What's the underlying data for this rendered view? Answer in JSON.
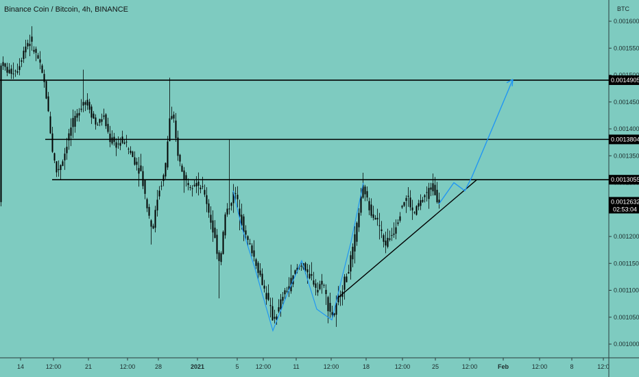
{
  "chart": {
    "title": "Binance Coin / Bitcoin, 4h, BINANCE",
    "currency": "BTC",
    "countdown": "02:53:04"
  },
  "colors": {
    "background": "#7ecbc0",
    "candle": "#000000",
    "level_line": "#000000",
    "projection": "#2196f3",
    "label_bg": "#000000",
    "label_text": "#ffffff"
  },
  "chart_data": {
    "type": "candlestick",
    "y_axis": {
      "ticks": [
        "0.0016000",
        "0.0015500",
        "0.0015000",
        "0.0014500",
        "0.0014000",
        "0.0013500",
        "0.0013000",
        "0.0012500",
        "0.0012000",
        "0.0011500",
        "0.0011000",
        "0.0010500",
        "0.0010000"
      ],
      "range": [
        0.00098,
        0.00162
      ]
    },
    "x_axis": {
      "ticks": [
        "14",
        "12:00",
        "21",
        "12:00",
        "28",
        "2021",
        "5",
        "12:00",
        "11",
        "12:00",
        "18",
        "12:00",
        "25",
        "12:00",
        "Feb",
        "12:00",
        "8",
        "12:0"
      ]
    },
    "levels": [
      {
        "price": 0.0014905,
        "label": "0.0014905"
      },
      {
        "price": 0.0013804,
        "label": "0.0013804"
      },
      {
        "price": 0.0013055,
        "label": "0.0013055"
      }
    ],
    "last_price": {
      "price": 0.0012632,
      "label": "0.0012632"
    },
    "price_path": [
      [
        0,
        0.001525
      ],
      [
        12,
        0.001505
      ],
      [
        25,
        0.00151
      ],
      [
        35,
        0.00155
      ],
      [
        42,
        0.001565
      ],
      [
        55,
        0.00153
      ],
      [
        65,
        0.00148
      ],
      [
        70,
        0.00143
      ],
      [
        76,
        0.00136
      ],
      [
        82,
        0.00132
      ],
      [
        92,
        0.001345
      ],
      [
        102,
        0.0014
      ],
      [
        112,
        0.001425
      ],
      [
        122,
        0.001455
      ],
      [
        130,
        0.00144
      ],
      [
        140,
        0.001405
      ],
      [
        150,
        0.001425
      ],
      [
        160,
        0.00138
      ],
      [
        170,
        0.00137
      ],
      [
        180,
        0.00138
      ],
      [
        192,
        0.00135
      ],
      [
        205,
        0.00132
      ],
      [
        215,
        0.00125
      ],
      [
        222,
        0.00121
      ],
      [
        230,
        0.00128
      ],
      [
        240,
        0.00132
      ],
      [
        247,
        0.00142
      ],
      [
        252,
        0.00142
      ],
      [
        258,
        0.00136
      ],
      [
        265,
        0.00132
      ],
      [
        272,
        0.0013
      ],
      [
        285,
        0.0013
      ],
      [
        298,
        0.00128
      ],
      [
        305,
        0.00124
      ],
      [
        312,
        0.0012
      ],
      [
        320,
        0.00115
      ],
      [
        328,
        0.00124
      ],
      [
        335,
        0.00126
      ],
      [
        342,
        0.001285
      ],
      [
        350,
        0.00124
      ],
      [
        358,
        0.0012
      ],
      [
        368,
        0.00117
      ],
      [
        378,
        0.00113
      ],
      [
        388,
        0.00109
      ],
      [
        398,
        0.001045
      ],
      [
        405,
        0.00106
      ],
      [
        412,
        0.00109
      ],
      [
        422,
        0.00111
      ],
      [
        432,
        0.00114
      ],
      [
        440,
        0.00115
      ],
      [
        448,
        0.00113
      ],
      [
        456,
        0.00112
      ],
      [
        462,
        0.0011
      ],
      [
        470,
        0.00112
      ],
      [
        478,
        0.00107
      ],
      [
        486,
        0.00105
      ],
      [
        492,
        0.00108
      ],
      [
        500,
        0.00111
      ],
      [
        508,
        0.00114
      ],
      [
        516,
        0.001185
      ],
      [
        522,
        0.00124
      ],
      [
        530,
        0.001295
      ],
      [
        537,
        0.001255
      ],
      [
        545,
        0.00124
      ],
      [
        552,
        0.001225
      ],
      [
        560,
        0.001185
      ],
      [
        570,
        0.0012
      ],
      [
        578,
        0.001225
      ],
      [
        586,
        0.00126
      ],
      [
        594,
        0.001275
      ],
      [
        602,
        0.00124
      ],
      [
        610,
        0.00126
      ],
      [
        620,
        0.001275
      ],
      [
        630,
        0.001295
      ],
      [
        640,
        0.001263
      ]
    ],
    "annotations": {
      "zigzag_blue": [
        [
          2,
          0.0015
        ],
        [
          66,
          0.00134
        ],
        [
          76,
          0.00105
        ],
        [
          105,
          0.001155
        ],
        [
          123,
          0.00107
        ],
        [
          144,
          0.001305
        ],
        [
          180,
          0.001175
        ],
        [
          209,
          0.00127
        ],
        [
          218,
          0.0013
        ],
        [
          230,
          0.00129
        ],
        [
          238,
          0.00131
        ],
        [
          260,
          0.00148
        ]
      ],
      "trendline_black": [
        [
          492,
          0.001085
        ],
        [
          695,
          0.001305
        ]
      ]
    }
  }
}
